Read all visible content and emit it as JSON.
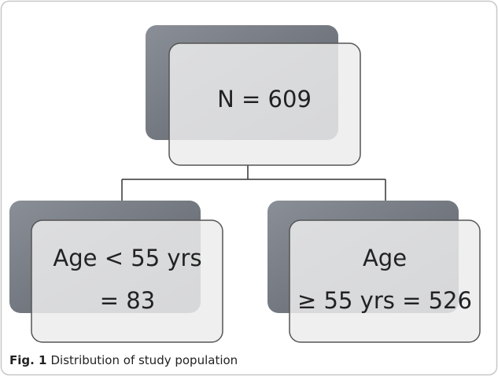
{
  "nodes": [
    {
      "lines": [
        "N = 609"
      ]
    },
    {
      "lines": [
        "Age < 55 yrs",
        "= 83"
      ]
    },
    {
      "lines": [
        "Age",
        "≥ 55 yrs = 526"
      ]
    }
  ],
  "caption": {
    "label": "Fig. 1",
    "text": "Distribution of study population"
  }
}
